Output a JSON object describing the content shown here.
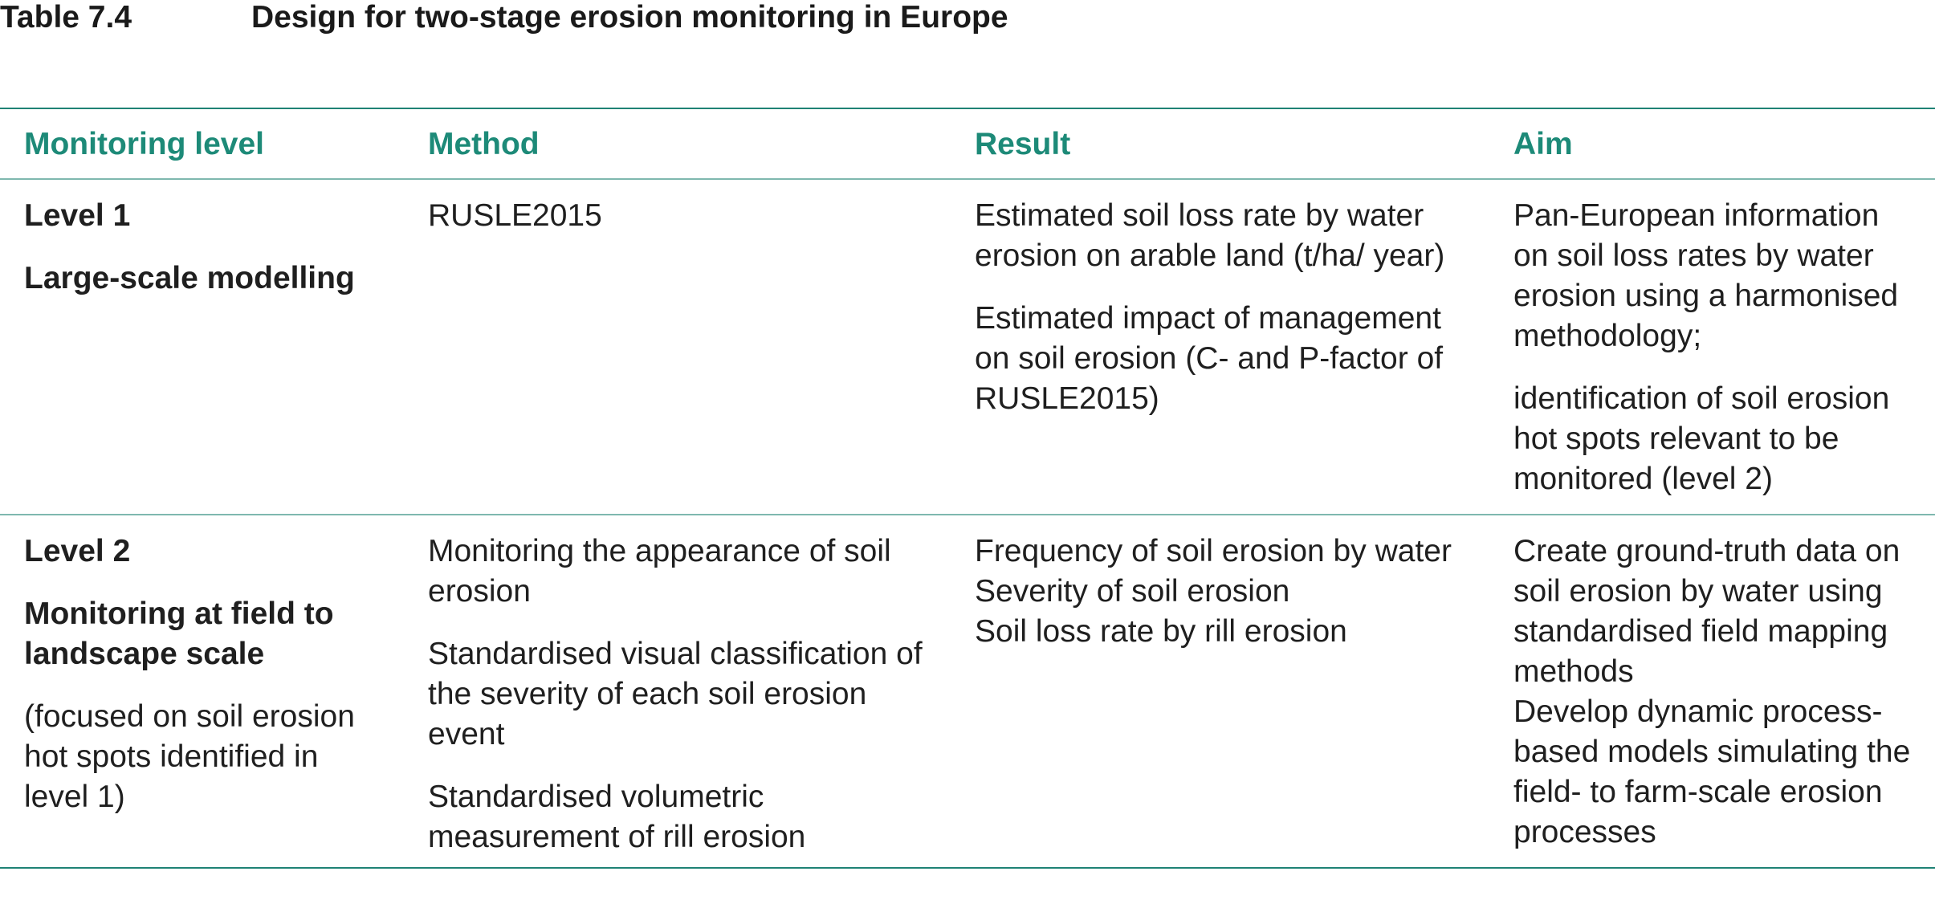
{
  "title": {
    "number": "Table 7.4",
    "text": "Design for two-stage erosion monitoring in Europe"
  },
  "headers": [
    "Monitoring level",
    "Method",
    "Result",
    "Aim"
  ],
  "rows": [
    {
      "level": {
        "name": "Level 1",
        "subtitle": "Large-scale modelling",
        "note": ""
      },
      "method": [
        "RUSLE2015"
      ],
      "result": [
        "Estimated soil loss rate by water erosion on arable land (t/ha/ year)",
        "Estimated impact of management on soil erosion (C- and P-factor of RUSLE2015)"
      ],
      "aim": [
        "Pan-European information on soil loss rates by water erosion using a harmonised methodology;",
        "identification of soil erosion hot spots relevant to be monitored (level 2)"
      ]
    },
    {
      "level": {
        "name": "Level 2",
        "subtitle": "Monitoring at field to landscape scale",
        "note": "(focused on soil erosion hot spots identified in level 1)"
      },
      "method": [
        "Monitoring the appearance of soil erosion",
        "Standardised visual classification of the severity of each soil erosion event",
        "Standardised volumetric measurement of rill erosion"
      ],
      "result": [
        "Frequency of soil erosion by water",
        "Severity of soil erosion",
        "Soil loss rate by rill erosion"
      ],
      "aim": [
        "Create ground-truth data on soil erosion by water using standardised field mapping methods",
        "Develop dynamic process-based models simulating the field- to farm-scale erosion processes"
      ]
    }
  ],
  "colors": {
    "header_text": "#1d8a78",
    "rule_dark": "#1f8275",
    "rule_light": "#7fb8af",
    "body_text": "#1f1f1f"
  }
}
